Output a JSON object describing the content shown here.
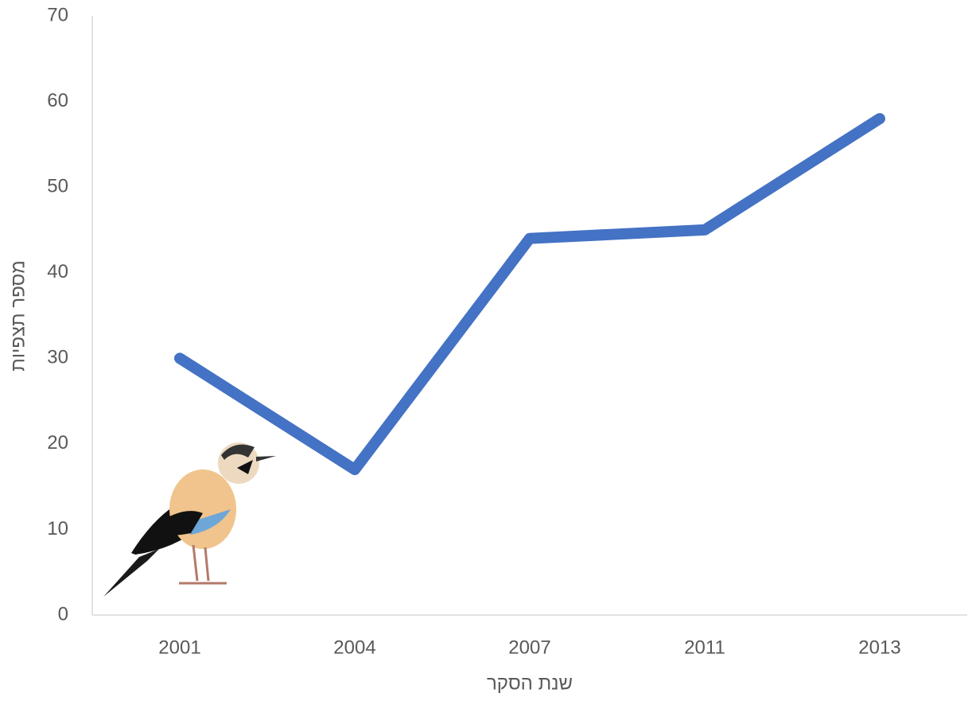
{
  "chart_data": {
    "type": "line",
    "x_label": "שנת הסקר",
    "y_label": "מספר תצפיות",
    "categories": [
      "2001",
      "2004",
      "2007",
      "2011",
      "2013"
    ],
    "values": [
      30,
      17,
      44,
      45,
      58
    ],
    "color": "#4472c4",
    "ylim": [
      0,
      70
    ],
    "yticks": [
      0,
      10,
      20,
      30,
      40,
      50,
      60,
      70
    ],
    "grid": false
  }
}
